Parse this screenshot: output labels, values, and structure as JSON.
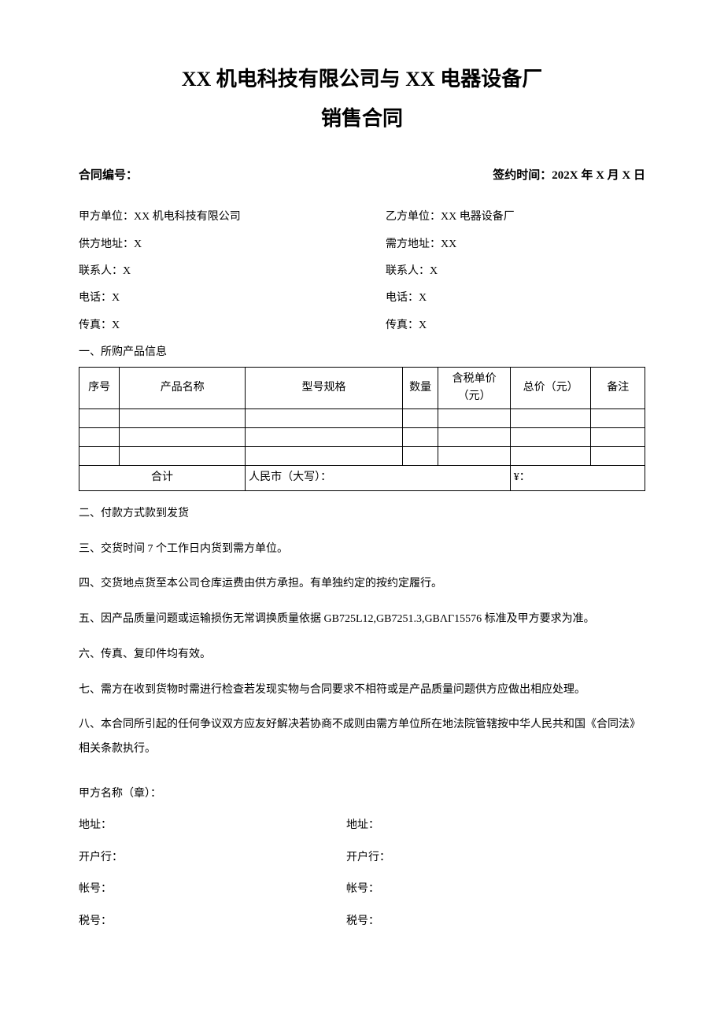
{
  "title_line1": "XX 机电科技有限公司与 XX 电器设备厂",
  "title_line2": "销售合同",
  "contract_no_label": "合同编号：",
  "sign_time_label": "签约时间：202X 年 X 月 X 日",
  "party_a": {
    "unit": "甲方单位：XX 机电科技有限公司",
    "addr": "供方地址：X",
    "contact": "联系人：X",
    "phone": "电话：X",
    "fax": "传真：X"
  },
  "party_b": {
    "unit": "乙方单位：XX 电器设备厂",
    "addr": "需方地址：XX",
    "contact": "联系人：X",
    "phone": "电话：X",
    "fax": "传真：X"
  },
  "section1_label": "一、所购产品信息",
  "table": {
    "headers": {
      "seq": "序号",
      "name": "产品名称",
      "spec": "型号规格",
      "qty": "数量",
      "price": "含税单价（元）",
      "total": "总价（元）",
      "note": "备注"
    },
    "sum_label": "合计",
    "rmb_label": "人民市（大写）：",
    "yen_label": "¥："
  },
  "clauses": {
    "c2": "二、付款方式款到发货",
    "c3": "三、交货时间 7 个工作日内货到需方单位。",
    "c4": "四、交货地点货至本公司仓库运费由供方承担。有单独约定的按约定履行。",
    "c5": "五、因产品质量问题或运输损伤无常调换质量依据 GB725L12,GB7251.3,GBΛΓ15576 标准及甲方要求为准。",
    "c6": "六、传真、复印件均有效。",
    "c7": "七、需方在收到货物时需进行检查若发现实物与合同要求不相符或是产品质量问题供方应做出相应处理。",
    "c8": "八、本合同所引起的任何争议双方应友好解决若协商不成则由需方单位所在地法院管辖按中华人民共和国《合同法》相关条款执行。"
  },
  "signature": {
    "party_a_name": "甲方名称（章）：",
    "addr": "地址：",
    "bank": "开户行：",
    "account": "帐号：",
    "tax": "税号："
  }
}
